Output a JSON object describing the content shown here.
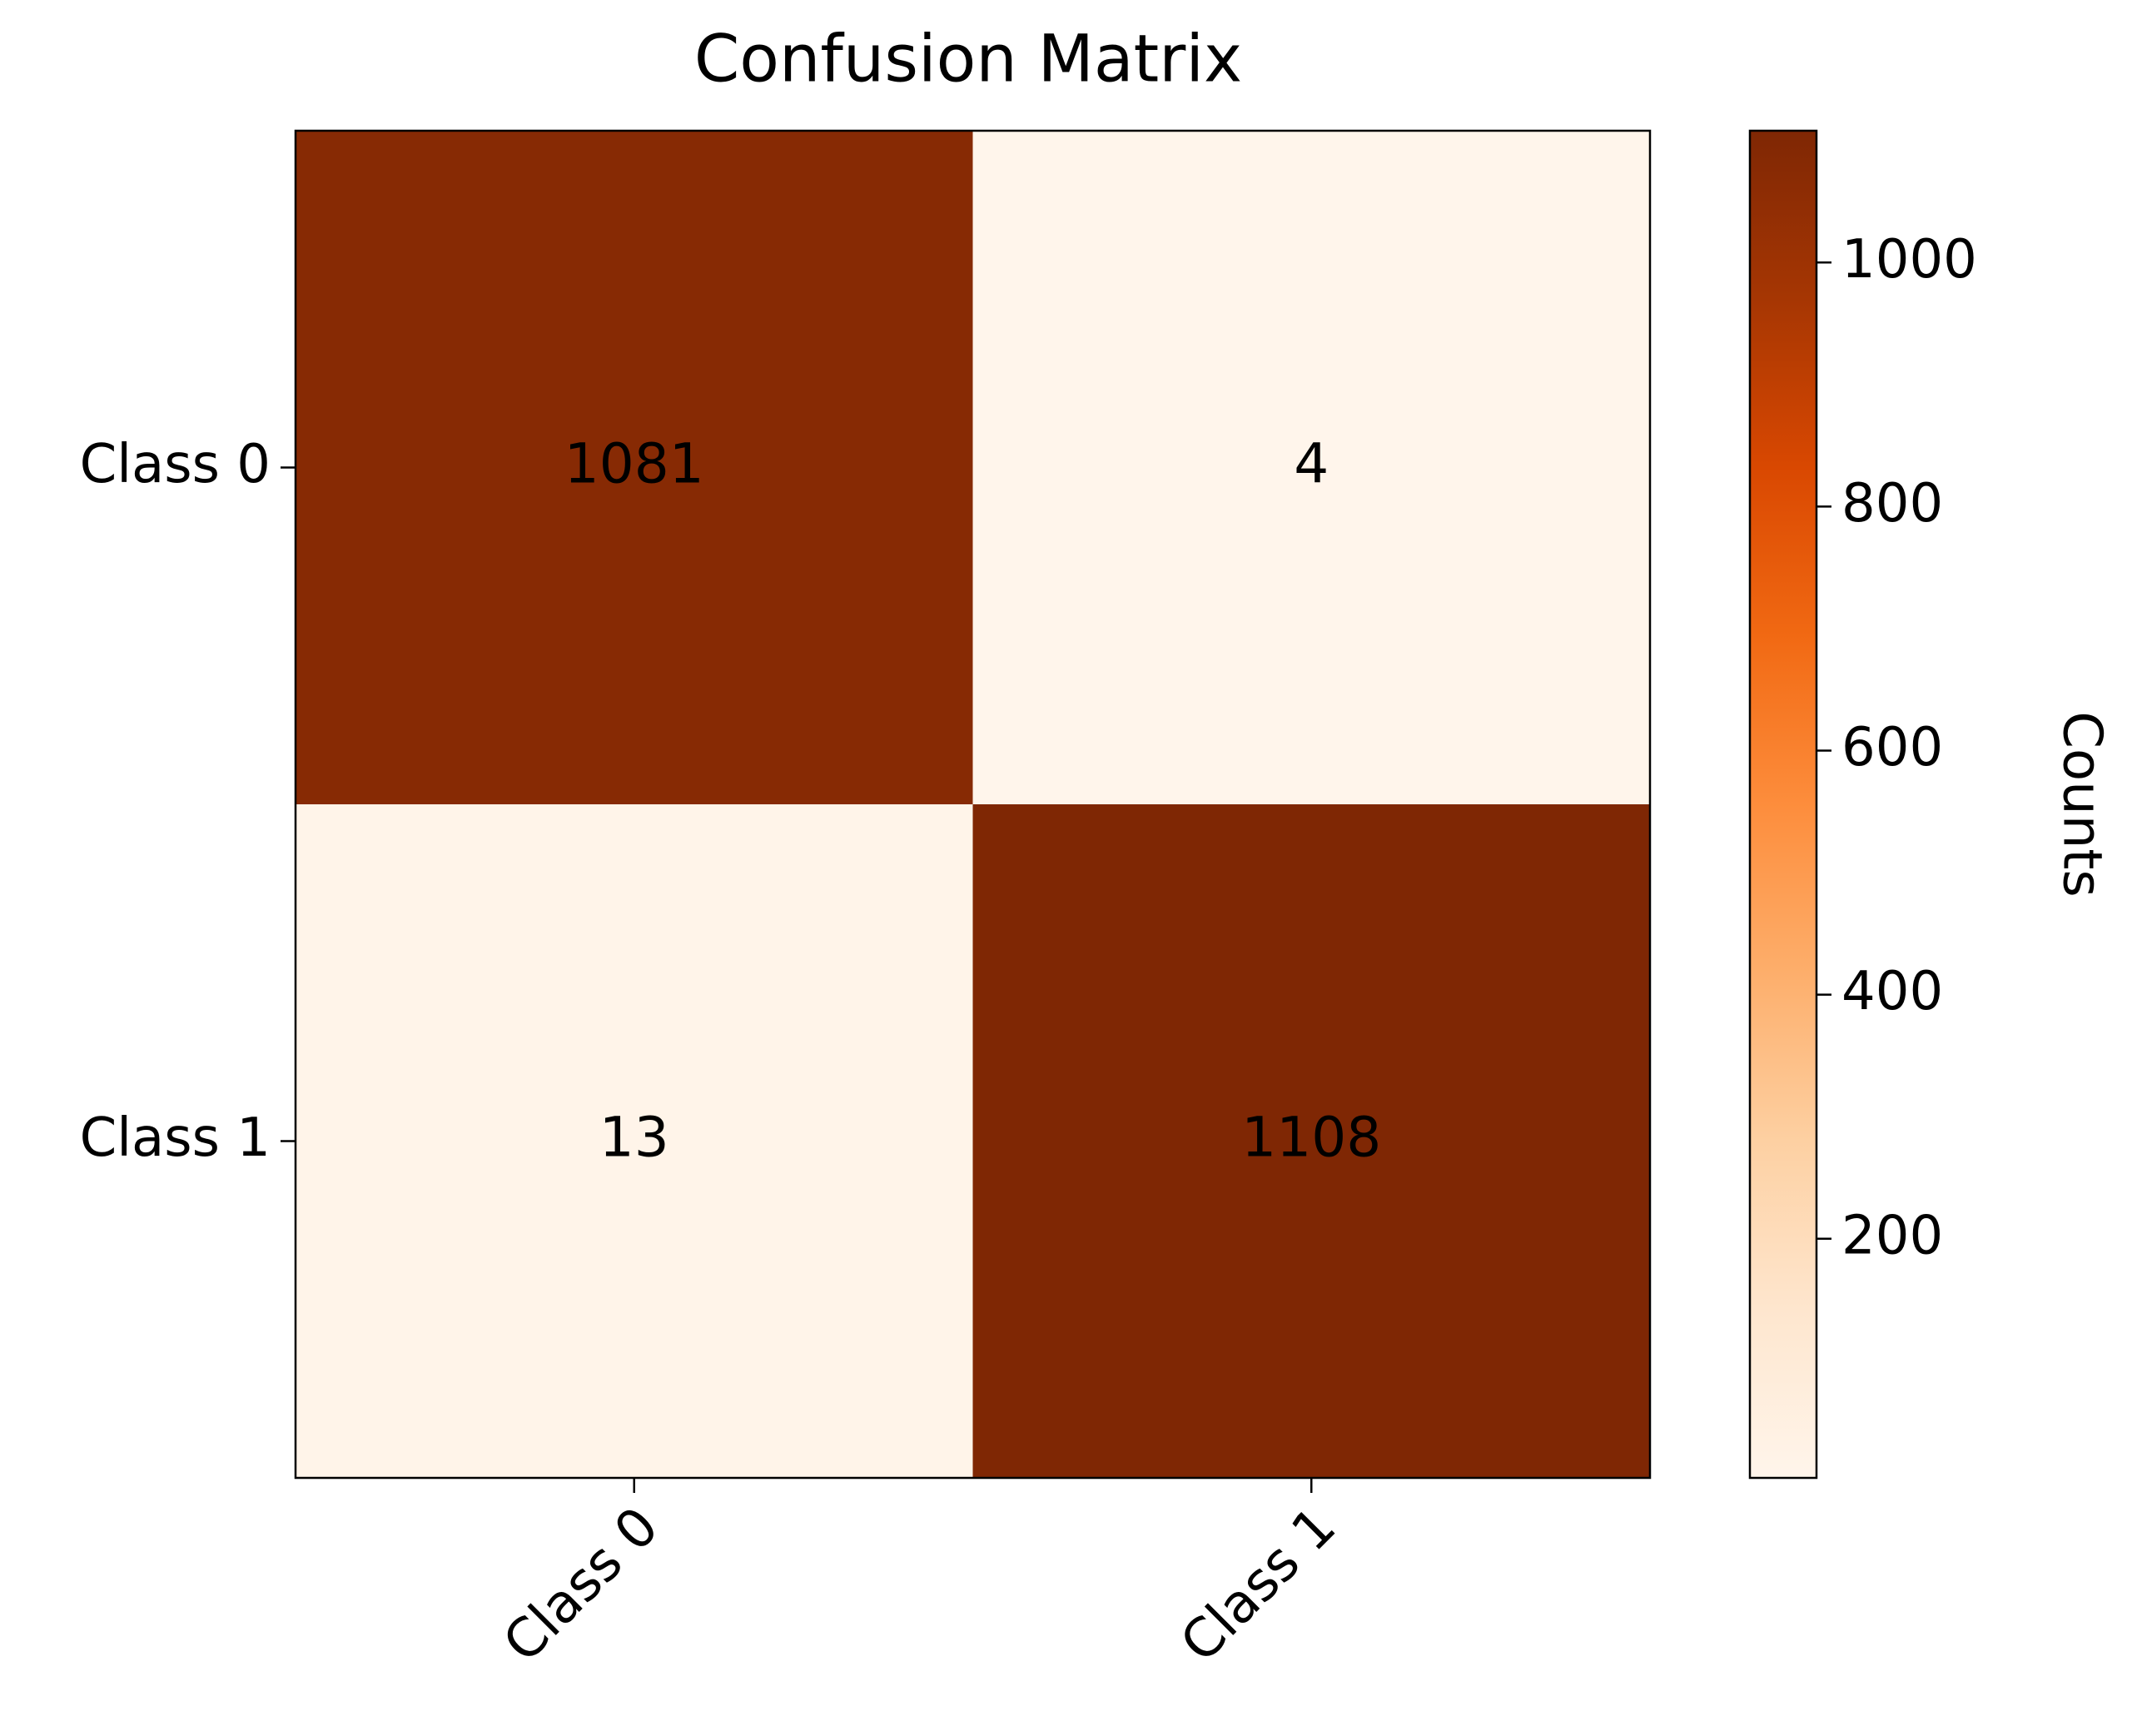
{
  "chart_data": {
    "type": "heatmap",
    "title": "Confusion Matrix",
    "x_categories": [
      "Class 0",
      "Class 1"
    ],
    "y_categories": [
      "Class 0",
      "Class 1"
    ],
    "values": [
      [
        1081,
        4
      ],
      [
        13,
        1108
      ]
    ],
    "colorbar_label": "Counts",
    "clim": [
      4,
      1108
    ],
    "cticks": [
      200,
      400,
      600,
      800,
      1000
    ],
    "colormap": [
      "#fff5eb",
      "#fee6ce",
      "#fdd0a2",
      "#fdae6b",
      "#fd8d3c",
      "#f16913",
      "#d94801",
      "#a63603",
      "#7f2704"
    ]
  }
}
